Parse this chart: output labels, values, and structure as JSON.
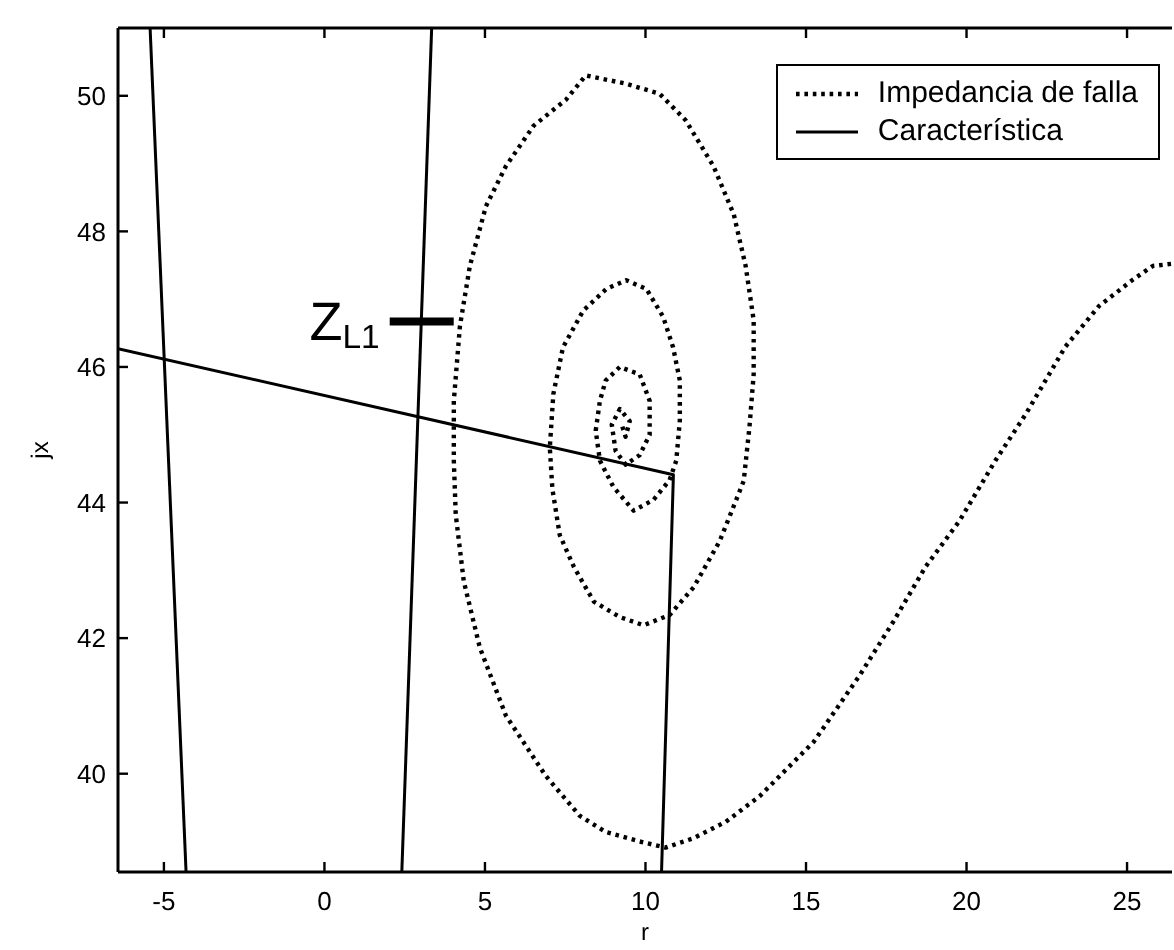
{
  "chart_data": {
    "type": "line",
    "xlabel": "r",
    "ylabel": "jx",
    "xlim": [
      -6.43,
      26.4
    ],
    "xticks": [
      -5,
      0,
      5,
      10,
      15,
      20,
      25
    ],
    "ylim": [
      38.55,
      51
    ],
    "yticks": [
      40,
      42,
      44,
      46,
      48,
      50
    ],
    "legend": "top right",
    "annotations": [
      {
        "text": "Z$_{L1}$",
        "x": 3.03,
        "y": 46.67
      }
    ],
    "series": [
      {
        "name": "Impedancia de falla",
        "color": "#000000",
        "line_style": "dotted",
        "x": [
          26.37,
          25.8,
          25.19,
          24.13,
          23.08,
          21.84,
          20.9,
          19.78,
          18.72,
          17.73,
          16.67,
          15.24,
          13.56,
          12.5,
          11.5,
          10.63,
          9.82,
          8.76,
          7.95,
          6.89,
          5.65,
          4.84,
          4.34,
          4.09,
          4.03,
          4.03,
          4.22,
          4.53,
          5.03,
          5.65,
          6.52,
          7.52,
          8.14,
          9.38,
          10.44,
          11.25,
          12.12,
          12.75,
          13.12,
          13.37,
          13.37,
          13.24,
          13.06,
          12.81,
          12.31,
          11.5,
          10.75,
          9.94,
          9.2,
          8.39,
          7.77,
          7.33,
          7.1,
          7.02,
          7.13,
          7.43,
          8.06,
          8.78,
          9.4,
          10.03,
          10.55,
          10.86,
          11.07,
          11.07,
          10.96,
          10.75,
          10.25,
          9.63,
          9.0,
          8.58,
          8.45,
          8.58,
          8.76,
          9.2,
          9.82,
          10.13,
          10.13,
          9.82,
          9.38,
          9.07,
          8.95,
          9.2,
          9.51,
          9.38,
          9.26
        ],
        "values": [
          47.52,
          47.49,
          47.29,
          46.9,
          46.3,
          45.3,
          44.62,
          43.73,
          43.05,
          42.25,
          41.45,
          40.47,
          39.67,
          39.29,
          39.05,
          38.91,
          39.0,
          39.14,
          39.38,
          39.97,
          40.86,
          41.86,
          42.84,
          43.82,
          44.62,
          45.5,
          46.6,
          47.49,
          48.37,
          48.96,
          49.56,
          49.94,
          50.3,
          50.18,
          50.03,
          49.64,
          48.96,
          48.25,
          47.49,
          46.69,
          45.89,
          45.12,
          44.32,
          44.02,
          43.43,
          42.75,
          42.34,
          42.19,
          42.31,
          42.54,
          43.05,
          43.52,
          44.2,
          44.81,
          45.6,
          46.29,
          46.83,
          47.15,
          47.28,
          47.15,
          46.74,
          46.29,
          45.8,
          45.21,
          44.62,
          44.33,
          44.04,
          43.88,
          44.23,
          44.62,
          45.06,
          45.5,
          45.8,
          46.0,
          45.89,
          45.5,
          45.0,
          44.7,
          44.56,
          44.76,
          45.15,
          45.38,
          45.2,
          44.97,
          45.15
        ]
      },
      {
        "name": "Característica",
        "color": "#000000",
        "line_style": "solid",
        "x": [
          -6.43,
          10.87,
          10.5
        ],
        "values": [
          46.27,
          44.41,
          38.55
        ]
      },
      {
        "color": "#000000",
        "line_style": "solid",
        "x": [
          -5.43,
          -4.31
        ],
        "values": [
          51,
          38.55
        ]
      },
      {
        "color": "#000000",
        "line_style": "solid",
        "x": [
          3.34,
          2.41
        ],
        "values": [
          51,
          38.55
        ]
      }
    ]
  }
}
